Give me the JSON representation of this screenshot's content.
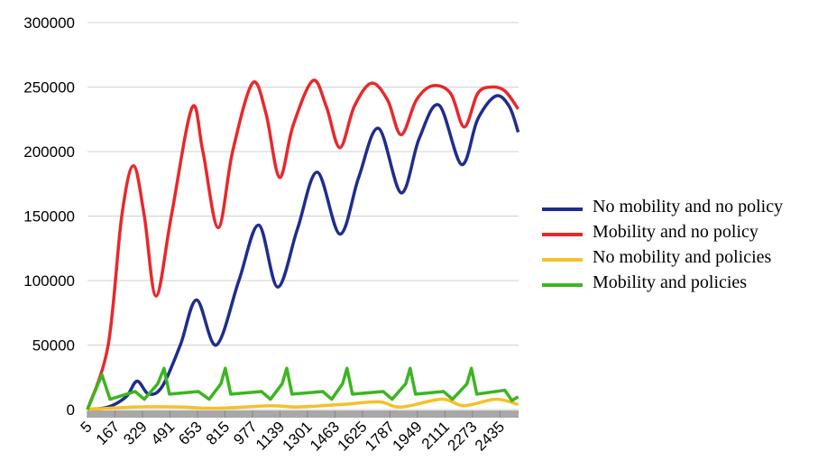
{
  "chart_data": {
    "type": "line",
    "xlim": [
      5,
      2545
    ],
    "ylim": [
      0,
      300000
    ],
    "xticks": [
      5,
      167,
      329,
      491,
      653,
      815,
      977,
      1139,
      1301,
      1463,
      1625,
      1787,
      1949,
      2111,
      2273,
      2435
    ],
    "yticks": [
      0,
      50000,
      100000,
      150000,
      200000,
      250000,
      300000
    ],
    "grid": true,
    "series": [
      {
        "name": "No mobility and no policy",
        "color": "#1f2d8c",
        "x": [
          5,
          127,
          233,
          297,
          366,
          446,
          552,
          648,
          764,
          897,
          1014,
          1125,
          1242,
          1359,
          1492,
          1603,
          1720,
          1853,
          1959,
          2076,
          2209,
          2304,
          2410,
          2490,
          2543
        ],
        "values": [
          0,
          2000,
          10000,
          22000,
          12000,
          18000,
          50000,
          85000,
          50000,
          100000,
          143000,
          95000,
          140000,
          184000,
          136000,
          180000,
          218000,
          168000,
          210000,
          236000,
          190000,
          225000,
          243000,
          235000,
          215000
        ]
      },
      {
        "name": "Mobility and no policy",
        "color": "#e8282b",
        "x": [
          5,
          127,
          207,
          276,
          340,
          409,
          499,
          621,
          685,
          775,
          860,
          977,
          1056,
          1136,
          1216,
          1333,
          1412,
          1492,
          1577,
          1678,
          1773,
          1853,
          1943,
          2039,
          2145,
          2225,
          2304,
          2384,
          2464,
          2543
        ],
        "values": [
          0,
          50000,
          150000,
          189000,
          150000,
          88000,
          150000,
          234000,
          200000,
          141000,
          200000,
          253000,
          230000,
          180000,
          220000,
          255000,
          235000,
          203000,
          235000,
          253000,
          240000,
          213000,
          240000,
          251000,
          245000,
          219000,
          245000,
          250000,
          247000,
          233000
        ]
      },
      {
        "name": "No mobility and policies",
        "color": "#f5c02a",
        "x": [
          5,
          286,
          552,
          764,
          1083,
          1242,
          1508,
          1720,
          1853,
          2092,
          2225,
          2410,
          2543
        ],
        "values": [
          0,
          2000,
          2000,
          1000,
          3000,
          2000,
          4000,
          6000,
          2000,
          8000,
          3000,
          8000,
          4000
        ]
      },
      {
        "name": "Mobility and policies",
        "color": "#3cb521",
        "x": [
          5,
          90,
          138,
          286,
          340,
          419,
          456,
          488,
          658,
          722,
          791,
          817,
          849,
          1030,
          1083,
          1152,
          1179,
          1210,
          1391,
          1444,
          1508,
          1534,
          1566,
          1747,
          1800,
          1880,
          1906,
          1938,
          2103,
          2156,
          2241,
          2267,
          2299,
          2464,
          2506,
          2543
        ],
        "values": [
          0,
          27000,
          8000,
          14000,
          8000,
          20000,
          32000,
          12000,
          14000,
          8000,
          20000,
          32000,
          12000,
          14000,
          8000,
          20000,
          32000,
          12000,
          14000,
          8000,
          20000,
          32000,
          12000,
          14000,
          8000,
          20000,
          32000,
          12000,
          14000,
          8000,
          20000,
          32000,
          12000,
          15000,
          7000,
          10000
        ]
      }
    ]
  }
}
